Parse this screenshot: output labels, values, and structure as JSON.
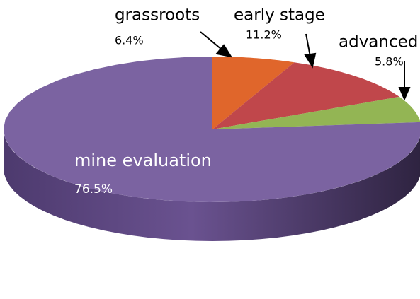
{
  "chart_data": {
    "type": "pie",
    "categories": [
      "grassroots",
      "early stage",
      "advanced",
      "mine evaluation"
    ],
    "values": [
      6.4,
      11.2,
      5.8,
      76.5
    ],
    "value_labels": [
      "6.4%",
      "11.2%",
      "5.8%",
      "76.5%"
    ],
    "colors": [
      "#e0662b",
      "#c0474b",
      "#93b554",
      "#7b63a1"
    ]
  }
}
